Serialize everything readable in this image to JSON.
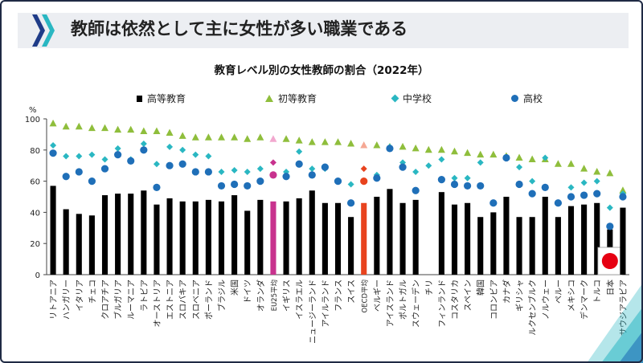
{
  "header": {
    "title": "教師は依然として主に女性が多い職業である"
  },
  "chart_data": {
    "type": "bar",
    "title": "教育レベル別の女性教師の割合（2022年）",
    "ylabel": "%",
    "ylim": [
      0,
      100
    ],
    "yticks": [
      0,
      20,
      40,
      60,
      80,
      100
    ],
    "legend_position": "top",
    "colors": {
      "tertiary": "#000000",
      "primary": "#8fbe3c",
      "lower_secondary": "#2ab7c2",
      "upper_secondary": "#1f6fb8",
      "eu_average": "#c8328e",
      "eu_average_light": "#f2a8cf",
      "oecd_average": "#e8431e",
      "oecd_average_light": "#f5a894",
      "japan_flag_red": "#e60012"
    },
    "legend": [
      {
        "key": "tertiary",
        "label": "高等教育"
      },
      {
        "key": "primary",
        "label": "初等教育"
      },
      {
        "key": "lower_secondary",
        "label": "中学校"
      },
      {
        "key": "upper_secondary",
        "label": "高校"
      }
    ],
    "highlight": {
      "eu": "EU25平均",
      "oecd": "OECD平均",
      "japan": "日本"
    },
    "categories": [
      "リトアニア",
      "ハンガリー",
      "イタリア",
      "チェコ",
      "クロアチア",
      "ブルガリア",
      "ルーマニア",
      "ラトビア",
      "オーストリア",
      "エストニア",
      "スロバキア",
      "スロベニア",
      "ポーランド",
      "ブラジル",
      "米国",
      "ドイツ",
      "オランダ",
      "EU25平均",
      "イギリス",
      "イスラエル",
      "ニュージーランド",
      "アイルランド",
      "フランス",
      "スイス",
      "OECD平均",
      "ベルギー",
      "アイスランド",
      "ポルトガル",
      "スウェーデン",
      "チリ",
      "フィンランド",
      "コスタリカ",
      "スペイン",
      "韓国",
      "コロンビア",
      "カナダ",
      "ギリシャ",
      "ルクセンブルク",
      "ノルウェー",
      "ペルー",
      "メキシコ",
      "デンマーク",
      "トルコ",
      "日本",
      "サウジアラビア"
    ],
    "series": [
      {
        "key": "tertiary",
        "name": "高等教育",
        "values": [
          57,
          42,
          39,
          38,
          51,
          52,
          52,
          54,
          45,
          49,
          47,
          47,
          48,
          47,
          51,
          41,
          48,
          47,
          47,
          49,
          54,
          46,
          46,
          37,
          46,
          50,
          55,
          46,
          48,
          null,
          53,
          45,
          46,
          37,
          40,
          50,
          37,
          37,
          50,
          37,
          44,
          45,
          46,
          29,
          43
        ]
      },
      {
        "key": "primary",
        "name": "初等教育",
        "values": [
          97,
          95,
          95,
          94,
          94,
          93,
          93,
          92,
          92,
          91,
          89,
          88,
          88,
          88,
          88,
          87,
          88,
          87,
          87,
          86,
          85,
          85,
          85,
          84,
          83,
          83,
          82,
          82,
          81,
          80,
          80,
          79,
          78,
          77,
          77,
          76,
          75,
          74,
          74,
          71,
          71,
          68,
          66,
          65,
          54
        ]
      },
      {
        "key": "lower_secondary",
        "name": "中学校",
        "values": [
          83,
          76,
          76,
          77,
          74,
          81,
          74,
          84,
          71,
          82,
          80,
          77,
          76,
          66,
          67,
          66,
          68,
          72,
          66,
          79,
          68,
          68,
          null,
          58,
          68,
          64,
          82,
          72,
          66,
          70,
          74,
          62,
          62,
          72,
          null,
          null,
          69,
          60,
          75,
          null,
          56,
          59,
          60,
          43,
          52
        ]
      },
      {
        "key": "upper_secondary",
        "name": "高校",
        "values": [
          78,
          63,
          66,
          60,
          68,
          77,
          73,
          80,
          56,
          70,
          71,
          66,
          66,
          57,
          58,
          57,
          60,
          64,
          63,
          71,
          64,
          69,
          60,
          46,
          60,
          62,
          81,
          69,
          54,
          null,
          61,
          58,
          57,
          57,
          46,
          75,
          58,
          52,
          56,
          46,
          50,
          51,
          52,
          31,
          50
        ]
      }
    ]
  }
}
